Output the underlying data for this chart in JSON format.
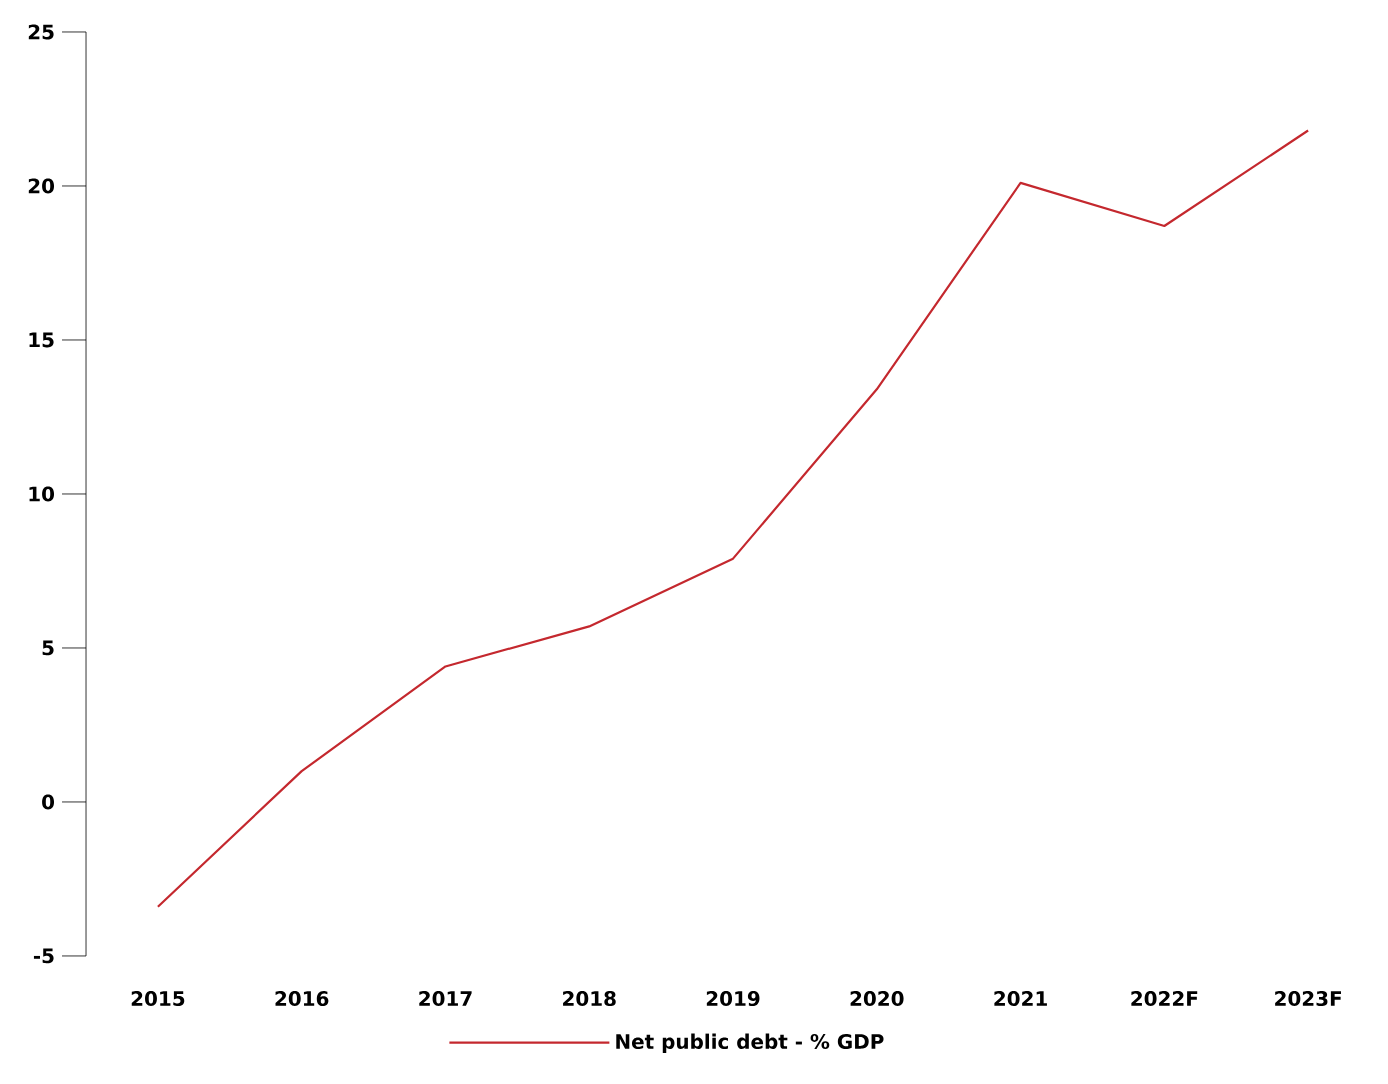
{
  "chart_data": {
    "type": "line",
    "categories": [
      "2015",
      "2016",
      "2017",
      "2018",
      "2019",
      "2020",
      "2021",
      "2022F",
      "2023F"
    ],
    "series": [
      {
        "name": "Net public debt - % GDP",
        "color": "#c4282e",
        "values": [
          -3.4,
          1.0,
          4.4,
          5.7,
          7.9,
          13.4,
          20.1,
          18.7,
          21.8
        ]
      }
    ],
    "ylim": [
      -5,
      25
    ],
    "yticks": [
      -5,
      0,
      5,
      10,
      15,
      20,
      25
    ],
    "legend": "bottom",
    "grid": false,
    "marker": "none",
    "line_style": "solid"
  }
}
